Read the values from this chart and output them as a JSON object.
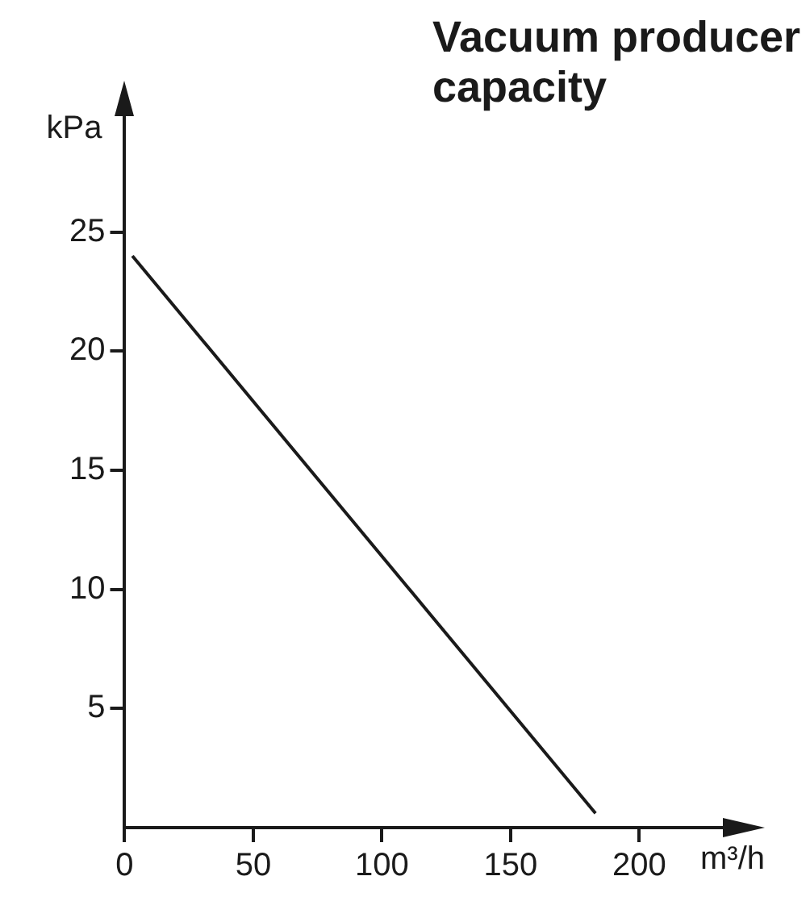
{
  "chart_data": {
    "type": "line",
    "title": "Vacuum producer capacity",
    "xlabel": "m³/h",
    "ylabel": "kPa",
    "x": [
      3,
      183
    ],
    "series": [
      {
        "color": "#1a1a1a",
        "values": [
          24,
          0.6
        ]
      }
    ],
    "xlim": [
      0,
      235
    ],
    "xticks": [
      0,
      50,
      100,
      150,
      200
    ],
    "ylim": [
      0,
      30
    ],
    "yticks": [
      5,
      10,
      15,
      20,
      25
    ],
    "grid": false,
    "legend": false,
    "marker": "none",
    "line_style": "solid"
  }
}
